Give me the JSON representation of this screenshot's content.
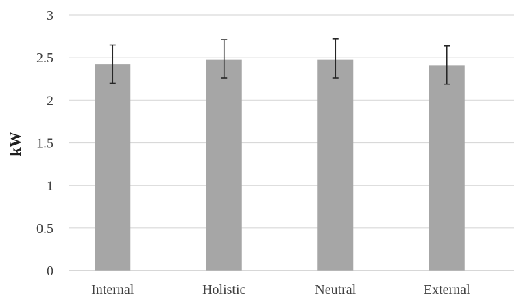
{
  "chart_data": {
    "type": "bar",
    "title": "",
    "xlabel": "",
    "ylabel": "kW",
    "ylim": [
      0,
      3
    ],
    "y_ticks": [
      "0",
      "0.5",
      "1",
      "1.5",
      "2",
      "2.5",
      "3"
    ],
    "categories": [
      "Internal",
      "Holistic",
      "Neutral",
      "External"
    ],
    "values": [
      2.42,
      2.48,
      2.48,
      2.41
    ],
    "error_low": [
      2.2,
      2.26,
      2.26,
      2.19
    ],
    "error_high": [
      2.65,
      2.71,
      2.72,
      2.64
    ],
    "grid": true,
    "legend": "none",
    "colors": {
      "bar": "#a6a6a6",
      "error_bar": "#262626",
      "grid": "#d9d9d9",
      "axis": "#bfbfbf"
    }
  }
}
